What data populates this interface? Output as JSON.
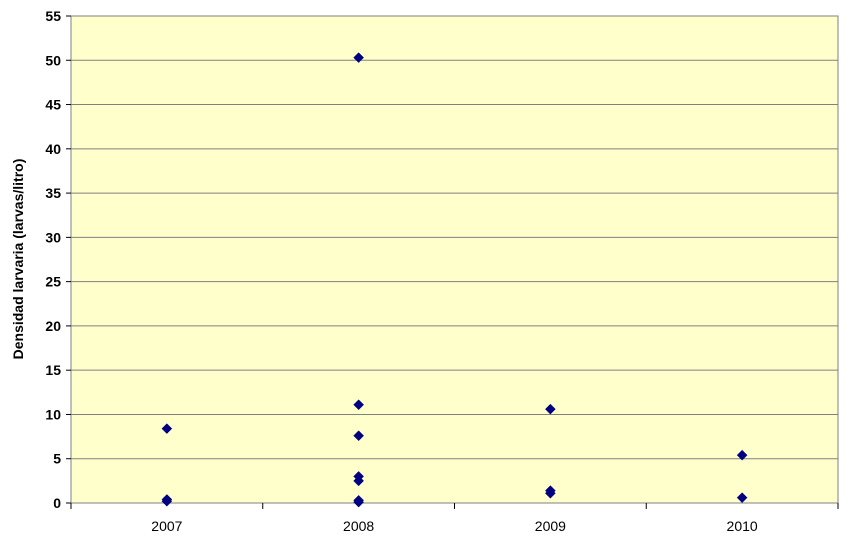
{
  "chart_data": {
    "type": "scatter",
    "title": "",
    "xlabel": "",
    "ylabel": "Densidad larvaria (larvas/litro)",
    "categories": [
      "2007",
      "2008",
      "2009",
      "2010"
    ],
    "ylim": [
      0,
      55
    ],
    "yticks": [
      0,
      5,
      10,
      15,
      20,
      25,
      30,
      35,
      40,
      45,
      50,
      55
    ],
    "grid": true,
    "legend": "none",
    "colors": {
      "plot_bg": "#FFFFCC",
      "marker": "#000080",
      "grid": "#808080"
    },
    "points": [
      {
        "x": "2007",
        "y": 8.4
      },
      {
        "x": "2007",
        "y": 0.4
      },
      {
        "x": "2007",
        "y": 0.2
      },
      {
        "x": "2008",
        "y": 50.3
      },
      {
        "x": "2008",
        "y": 11.1
      },
      {
        "x": "2008",
        "y": 7.6
      },
      {
        "x": "2008",
        "y": 3.0
      },
      {
        "x": "2008",
        "y": 2.5
      },
      {
        "x": "2008",
        "y": 0.3
      },
      {
        "x": "2008",
        "y": 0.1
      },
      {
        "x": "2009",
        "y": 10.6
      },
      {
        "x": "2009",
        "y": 1.4
      },
      {
        "x": "2009",
        "y": 1.1
      },
      {
        "x": "2010",
        "y": 5.4
      },
      {
        "x": "2010",
        "y": 0.6
      }
    ]
  }
}
